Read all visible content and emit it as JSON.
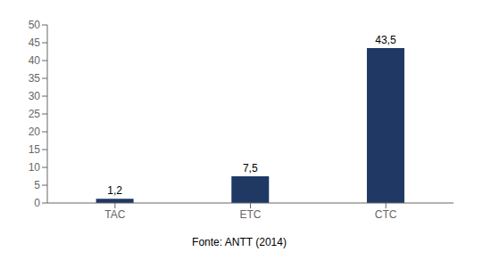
{
  "chart_data": {
    "type": "bar",
    "categories": [
      "TAC",
      "ETC",
      "CTC"
    ],
    "values": [
      1.2,
      7.5,
      43.5
    ],
    "value_labels": [
      "1,2",
      "7,5",
      "43,5"
    ],
    "data_labels": true,
    "color": "#1F3864",
    "ylim": [
      0,
      50
    ],
    "yticks": [
      0,
      5,
      10,
      15,
      20,
      25,
      30,
      35,
      40,
      45,
      50
    ],
    "grid": false,
    "annotations": [
      "Fonte: ANTT (2014)"
    ]
  }
}
